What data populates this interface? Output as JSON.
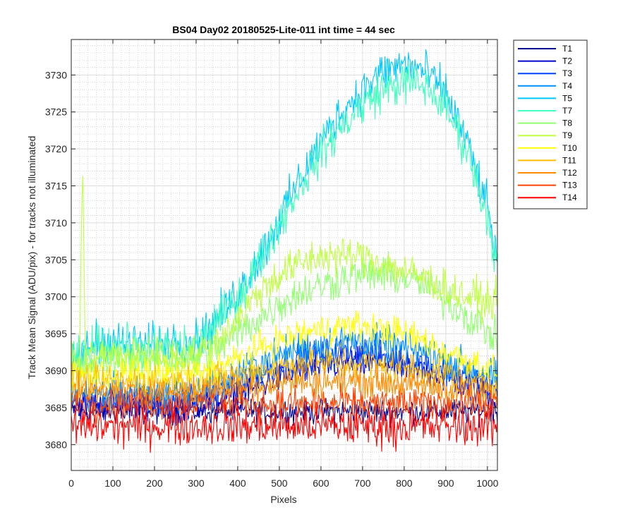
{
  "chart_data": {
    "type": "line",
    "title": "BS04 Day02 20180525-Lite-011 int time = 44 sec",
    "xlabel": "Pixels",
    "ylabel": "Track Mean Signal (ADU/pix) - for tracks not illuminated",
    "xlim": [
      0,
      1024
    ],
    "ylim": [
      3676.5,
      3734.8
    ],
    "x_ticks": [
      0,
      100,
      200,
      300,
      400,
      500,
      600,
      700,
      800,
      900,
      1000
    ],
    "y_ticks": [
      3680,
      3685,
      3690,
      3695,
      3700,
      3705,
      3710,
      3715,
      3720,
      3725,
      3730
    ],
    "grid": "major and minor, dotted",
    "legend_position": "outside top-right",
    "x_points": [
      0,
      30,
      60,
      100,
      150,
      200,
      250,
      300,
      350,
      400,
      450,
      500,
      550,
      600,
      650,
      700,
      750,
      800,
      850,
      900,
      950,
      1000,
      1024
    ],
    "series": [
      {
        "name": "T1",
        "color": "#00008f",
        "noise": 1.2,
        "values": [
          3684.5,
          3684.5,
          3684.5,
          3684.5,
          3684.5,
          3684.5,
          3684.5,
          3684.5,
          3684.5,
          3684.5,
          3684.5,
          3684.5,
          3684.5,
          3684.5,
          3684.5,
          3684.5,
          3684.5,
          3684.5,
          3684.5,
          3684.5,
          3684.5,
          3684.5,
          3684.5
        ]
      },
      {
        "name": "T2",
        "color": "#0000cc",
        "noise": 1.5,
        "values": [
          3685.5,
          3685.5,
          3685.5,
          3685.5,
          3685.5,
          3685.5,
          3685.5,
          3685.5,
          3686,
          3687,
          3688,
          3689,
          3690,
          3690.5,
          3691,
          3691,
          3691,
          3690.5,
          3690,
          3689,
          3688,
          3687,
          3686
        ]
      },
      {
        "name": "T3",
        "color": "#0040ff",
        "noise": 1.6,
        "values": [
          3686,
          3686,
          3686,
          3686,
          3686,
          3686,
          3686,
          3686,
          3687,
          3688,
          3689.5,
          3690.5,
          3691.5,
          3692,
          3692.5,
          3692.5,
          3692,
          3691.5,
          3691,
          3690,
          3689,
          3688,
          3687
        ]
      },
      {
        "name": "T4",
        "color": "#0090ff",
        "noise": 1.7,
        "values": [
          3687,
          3687,
          3687,
          3687,
          3687,
          3687,
          3687,
          3687,
          3688,
          3689.5,
          3691,
          3692,
          3693,
          3693.5,
          3694,
          3694,
          3693.5,
          3693,
          3692.5,
          3691.5,
          3690.5,
          3689.5,
          3689
        ]
      },
      {
        "name": "T5",
        "color": "#00c8ff",
        "noise": 2.0,
        "values": [
          3691,
          3692.5,
          3694,
          3694,
          3693.5,
          3693.5,
          3694,
          3694,
          3697,
          3700.5,
          3705,
          3710.5,
          3716,
          3721,
          3725,
          3728,
          3730.5,
          3731.5,
          3730.5,
          3727.5,
          3721,
          3712,
          3705
        ]
      },
      {
        "name": "T7",
        "color": "#40ffbf",
        "noise": 2.0,
        "values": [
          3691,
          3692,
          3693.5,
          3693.5,
          3693,
          3693,
          3693.5,
          3693.5,
          3696.5,
          3700,
          3704.5,
          3710,
          3715,
          3719.5,
          3723,
          3726,
          3728,
          3729,
          3728.5,
          3725.5,
          3720,
          3711,
          3704
        ]
      },
      {
        "name": "T8",
        "color": "#90ff70",
        "noise": 1.8,
        "values": [
          3690,
          3690.5,
          3691.5,
          3691.5,
          3691.5,
          3691.5,
          3691.5,
          3691.5,
          3693,
          3695,
          3697,
          3699,
          3700.5,
          3701.5,
          3702.5,
          3703,
          3703,
          3702.5,
          3701.5,
          3699.5,
          3697.5,
          3695.5,
          3694
        ]
      },
      {
        "name": "T9",
        "color": "#bfff40",
        "noise": 1.8,
        "values": [
          3690.5,
          3691,
          3692,
          3692,
          3692,
          3692,
          3692,
          3692,
          3694,
          3697,
          3700.5,
          3703,
          3704.5,
          3705.5,
          3705.5,
          3705.5,
          3704.5,
          3703.5,
          3702.5,
          3701,
          3700,
          3699.5,
          3699.5
        ]
      },
      {
        "name": "T10",
        "color": "#ffff00",
        "noise": 1.5,
        "values": [
          3689.5,
          3689.5,
          3689.5,
          3689.5,
          3689.5,
          3689.5,
          3689.5,
          3689.5,
          3690.5,
          3691.5,
          3693,
          3694,
          3695,
          3695.5,
          3696,
          3696,
          3695.5,
          3695,
          3694,
          3692.5,
          3691.5,
          3690.5,
          3690
        ]
      },
      {
        "name": "T11",
        "color": "#ffbf00",
        "noise": 1.5,
        "values": [
          3688.5,
          3688.5,
          3688.5,
          3688.5,
          3688.5,
          3688.5,
          3688.5,
          3688.5,
          3689,
          3689.5,
          3690,
          3690.5,
          3691,
          3691,
          3691,
          3691,
          3690.5,
          3690.5,
          3690,
          3689.5,
          3689,
          3688.5,
          3688
        ]
      },
      {
        "name": "T12",
        "color": "#ff8c00",
        "noise": 1.5,
        "values": [
          3687,
          3687,
          3687,
          3687,
          3687,
          3687,
          3687,
          3687,
          3687.5,
          3688,
          3688,
          3688.5,
          3688.5,
          3688.5,
          3688.5,
          3688.5,
          3688.5,
          3688,
          3688,
          3687.5,
          3687,
          3687,
          3686.5
        ]
      },
      {
        "name": "T13",
        "color": "#ff4000",
        "noise": 1.5,
        "values": [
          3685.5,
          3685.5,
          3685.5,
          3685.5,
          3685.5,
          3685.5,
          3685.5,
          3685.5,
          3685.5,
          3685.5,
          3685.5,
          3685.5,
          3685.5,
          3685.5,
          3685.5,
          3685.5,
          3685.5,
          3685.5,
          3685.5,
          3685.5,
          3685.5,
          3685.5,
          3685.5
        ]
      },
      {
        "name": "T14",
        "color": "#ff0000",
        "noise": 1.9,
        "values": [
          3682.5,
          3682.5,
          3682.5,
          3682.5,
          3682.5,
          3682.5,
          3682.5,
          3682.5,
          3682.5,
          3682.5,
          3682.5,
          3682.5,
          3682.5,
          3682.5,
          3682.5,
          3682.5,
          3682.5,
          3682.5,
          3682.5,
          3682.5,
          3682.5,
          3682.5,
          3682.5
        ]
      }
    ],
    "annotations": [
      {
        "series": "T9",
        "x": 27,
        "y": 3718.8,
        "note": "single-pixel spike"
      }
    ]
  }
}
